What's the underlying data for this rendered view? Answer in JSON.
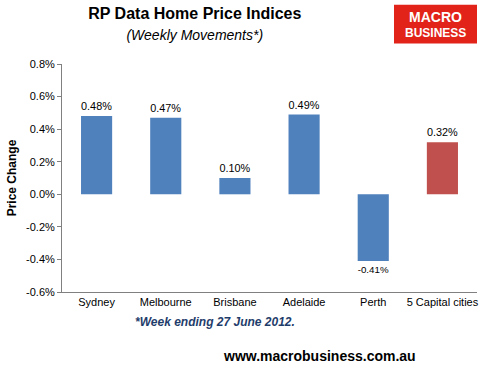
{
  "chart_data": {
    "type": "bar",
    "title": "RP Data Home Price Indices",
    "subtitle": "(Weekly Movements*)",
    "y_label": "Price Change",
    "categories": [
      "Sydney",
      "Melbourne",
      "Brisbane",
      "Adelaide",
      "Perth",
      "5 Capital cities"
    ],
    "values": [
      0.48,
      0.47,
      0.1,
      0.49,
      -0.41,
      0.32
    ],
    "value_labels": [
      "0.48%",
      "0.47%",
      "0.10%",
      "0.49%",
      "-0.41%",
      "0.32%"
    ],
    "colors": [
      "#4f81bd",
      "#4f81bd",
      "#4f81bd",
      "#4f81bd",
      "#4f81bd",
      "#c0504d"
    ],
    "data_labels": true,
    "grid": false,
    "ylim": [
      -0.6,
      0.8
    ],
    "yticks": [
      {
        "value": -0.6,
        "label": "-0.6%"
      },
      {
        "value": -0.4,
        "label": "-0.4%"
      },
      {
        "value": -0.2,
        "label": "-0.2%"
      },
      {
        "value": 0,
        "label": "0.0%"
      },
      {
        "value": 0.2,
        "label": "0.2%"
      },
      {
        "value": 0.4,
        "label": "0.4%"
      },
      {
        "value": 0.6,
        "label": "0.6%"
      },
      {
        "value": 0.8,
        "label": "0.8%"
      }
    ],
    "footnote": "*Week ending 27 June 2012.",
    "source": "www.macrobusiness.com.au",
    "logo": [
      "MACRO",
      "BUSINESS"
    ]
  }
}
